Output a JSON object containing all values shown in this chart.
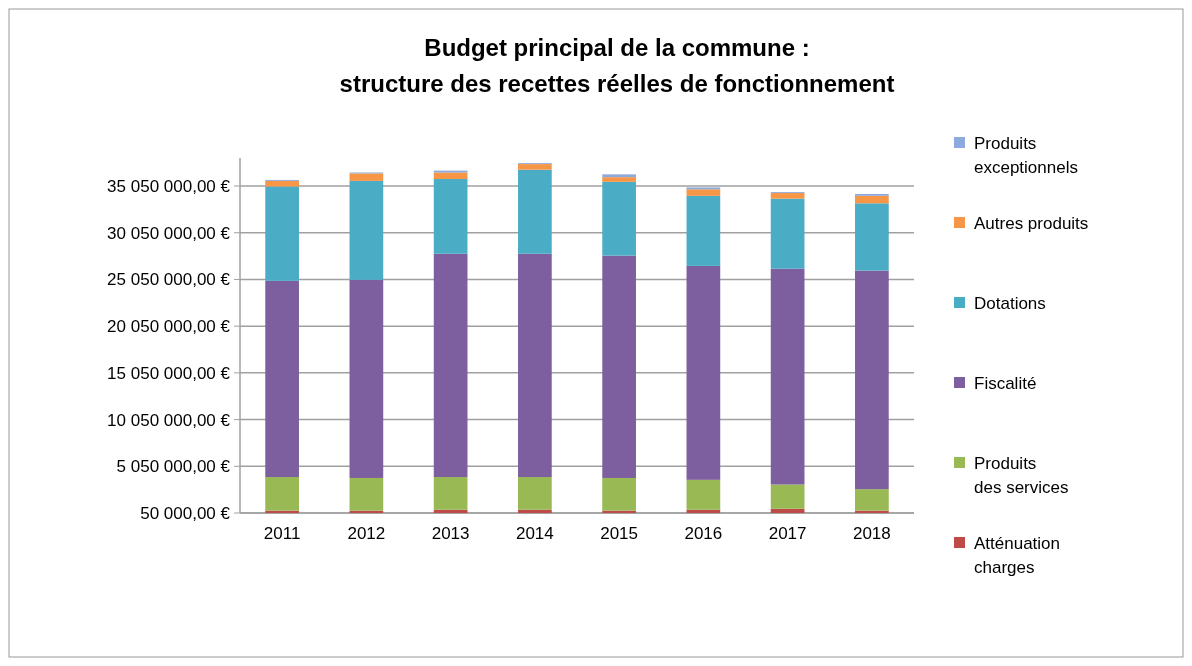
{
  "chart_data": {
    "type": "bar",
    "stacked": true,
    "title": "Budget principal  de la commune :\nstructure des recettes réelles de fonctionnement",
    "categories": [
      "2011",
      "2012",
      "2013",
      "2014",
      "2015",
      "2016",
      "2017",
      "2018"
    ],
    "series": [
      {
        "name": "Atténuation charges",
        "color": "#be4b48",
        "values": [
          300000,
          300000,
          400000,
          400000,
          300000,
          400000,
          500000,
          300000
        ]
      },
      {
        "name": "Produits des services",
        "color": "#98b954",
        "values": [
          3600000,
          3500000,
          3500000,
          3500000,
          3500000,
          3200000,
          2600000,
          2300000
        ]
      },
      {
        "name": "Fiscalité",
        "color": "#7d5fa0",
        "values": [
          21000000,
          21200000,
          23900000,
          23900000,
          23800000,
          22900000,
          23100000,
          23400000
        ]
      },
      {
        "name": "Dotations",
        "color": "#4bacc6",
        "values": [
          10100000,
          10600000,
          8000000,
          9000000,
          7900000,
          7500000,
          7500000,
          7200000
        ]
      },
      {
        "name": "Autres produits",
        "color": "#f79646",
        "values": [
          600000,
          800000,
          700000,
          600000,
          500000,
          700000,
          600000,
          800000
        ]
      },
      {
        "name": "Produits exceptionnels",
        "color": "#8ea9db",
        "values": [
          100000,
          100000,
          200000,
          100000,
          300000,
          200000,
          100000,
          200000
        ]
      }
    ],
    "ylim": [
      50000,
      38050000
    ],
    "yticks": [
      {
        "value": 50000,
        "label": "50 000,00 €"
      },
      {
        "value": 5050000,
        "label": "5 050 000,00 €"
      },
      {
        "value": 10050000,
        "label": "10 050 000,00 €"
      },
      {
        "value": 15050000,
        "label": "15 050 000,00 €"
      },
      {
        "value": 20050000,
        "label": "20 050 000,00 €"
      },
      {
        "value": 25050000,
        "label": "25 050 000,00 €"
      },
      {
        "value": 30050000,
        "label": "30 050 000,00 €"
      },
      {
        "value": 35050000,
        "label": "35 050 000,00 €"
      }
    ],
    "grid": "y",
    "legend": "right"
  }
}
